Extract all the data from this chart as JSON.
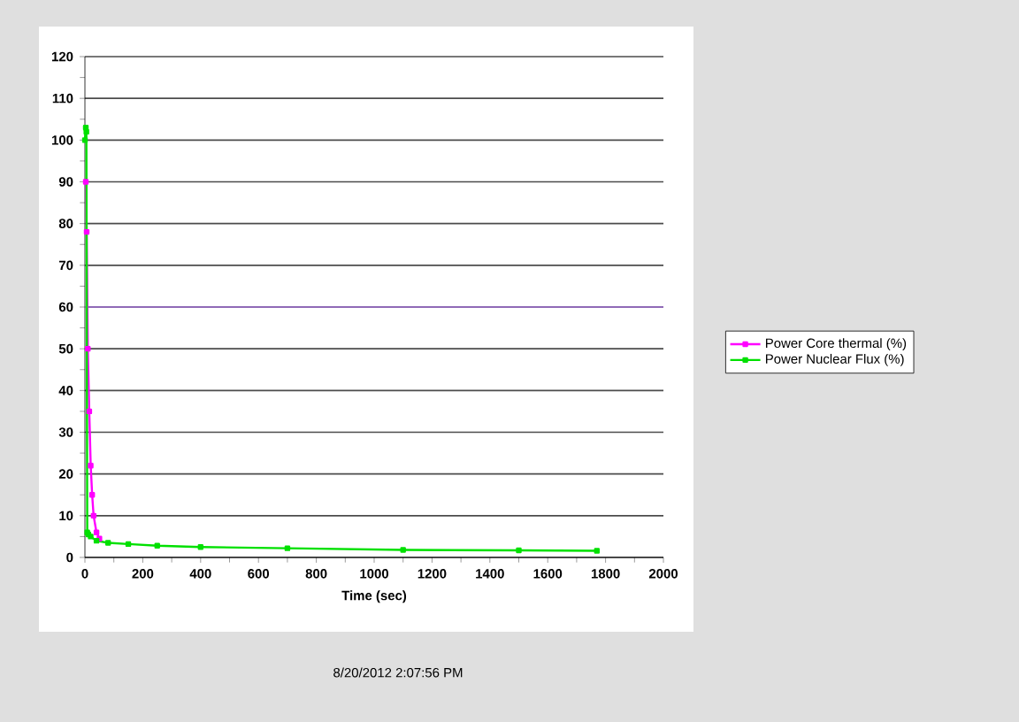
{
  "chart_data": {
    "type": "line",
    "xlabel": "Time (sec)",
    "xlim": [
      0,
      2000
    ],
    "xticks": [
      0,
      200,
      400,
      600,
      800,
      1000,
      1200,
      1400,
      1600,
      1800,
      2000
    ],
    "ylim": [
      0,
      120
    ],
    "yticks": [
      0,
      10,
      20,
      30,
      40,
      50,
      60,
      70,
      80,
      90,
      100,
      110,
      120
    ],
    "grid": "y",
    "legend": "right",
    "marker": "square",
    "line_style": "solid",
    "ref_lines": [
      {
        "axis": "y",
        "value": 60,
        "color": "#9966cc"
      }
    ],
    "annotations": [
      "8/20/2012 2:07:56 PM"
    ],
    "series": [
      {
        "name": "Power Core thermal (%)",
        "color": "#ff00ff",
        "x": [
          3,
          6,
          10,
          15,
          20,
          25,
          30,
          40,
          50
        ],
        "values": [
          90,
          78,
          50,
          35,
          22,
          15,
          10,
          6,
          4.5
        ]
      },
      {
        "name": "Power Nuclear Flux (%)",
        "color": "#00e000",
        "x": [
          0,
          3,
          5,
          8,
          12,
          20,
          40,
          80,
          150,
          250,
          400,
          700,
          1100,
          1500,
          1770
        ],
        "values": [
          100,
          103,
          102,
          6,
          5.5,
          5,
          4,
          3.5,
          3.2,
          2.8,
          2.5,
          2.2,
          1.8,
          1.7,
          1.6
        ]
      }
    ]
  }
}
